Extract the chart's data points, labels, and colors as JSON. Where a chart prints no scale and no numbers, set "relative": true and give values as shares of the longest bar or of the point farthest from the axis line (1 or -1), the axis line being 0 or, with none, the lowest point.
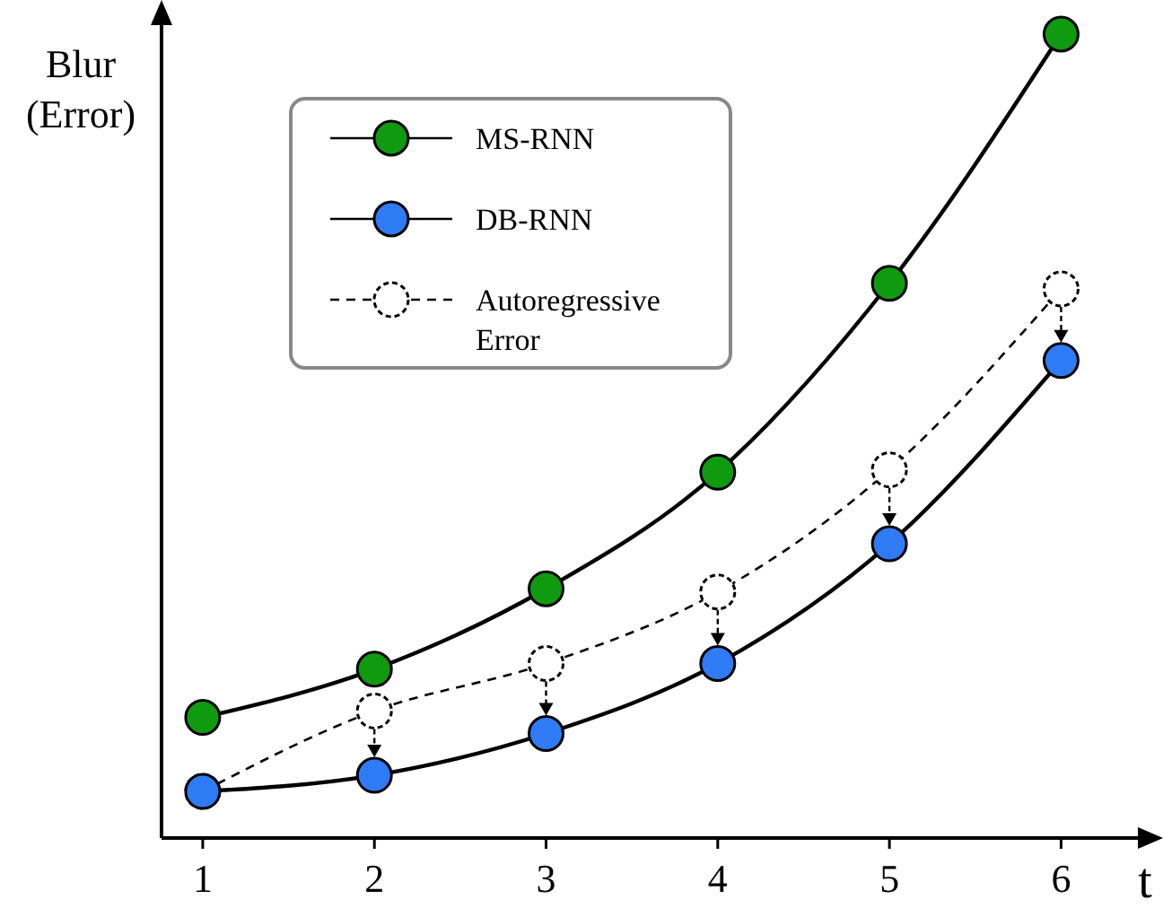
{
  "chart_data": {
    "type": "line",
    "relative": true,
    "xlabel": "t",
    "ylabel": "Blur (Error)",
    "x": [
      1,
      2,
      3,
      4,
      5,
      6
    ],
    "xlim": [
      0.76,
      6.51
    ],
    "xticks": [
      1,
      2,
      3,
      4,
      5,
      6
    ],
    "legend": "top left",
    "grid": false,
    "series": [
      {
        "name": "MS-RNN",
        "color": "#109a10",
        "marker": "circle",
        "line_style": "solid",
        "values": [
          0.15,
          0.21,
          0.31,
          0.455,
          0.69,
          1
        ]
      },
      {
        "name": "DB-RNN",
        "color": "#2f7bf5",
        "marker": "circle",
        "line_style": "solid",
        "values": [
          0.058,
          0.078,
          0.13,
          0.217,
          0.366,
          0.594
        ]
      },
      {
        "name": "Autoregressive Error",
        "color": "#000000",
        "marker": "circle",
        "line_style": "dashed",
        "values": [
          0.058,
          0.158,
          0.217,
          0.306,
          0.458,
          0.683
        ]
      }
    ]
  }
}
